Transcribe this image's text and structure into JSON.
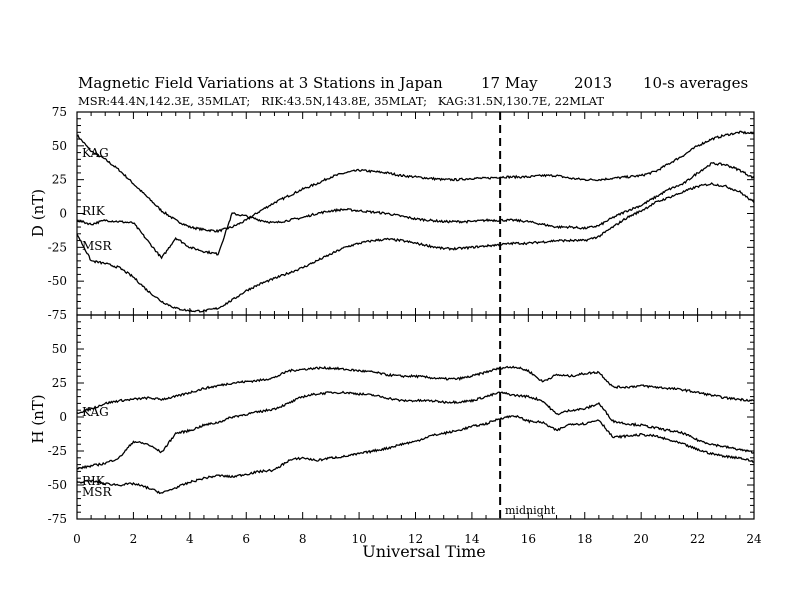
{
  "title": "Magnetic Field Variations at 3 Stations in Japan",
  "date": "17 May",
  "year": "2013",
  "averaging": "10-s averages",
  "subtitle": "MSR:44.4N,142.3E, 35MLAT;   RIK:43.5N,143.8E, 35MLAT;   KAG:31.5N,130.7E, 22MLAT",
  "xlabel": "Universal Time",
  "midnight_label": "midnight",
  "chart_data": [
    {
      "type": "line",
      "panel": "D",
      "ylabel": "D (nT)",
      "ylim": [
        -75,
        75
      ],
      "yticks": [
        75,
        50,
        25,
        0,
        -25,
        -50,
        -75
      ],
      "xlim": [
        0,
        24
      ],
      "xticks": [
        0,
        2,
        4,
        6,
        8,
        10,
        12,
        14,
        16,
        18,
        20,
        22,
        24
      ],
      "marker_x": 15,
      "series": [
        {
          "name": "KAG",
          "x": [
            0,
            0.5,
            1,
            1.5,
            2,
            2.5,
            3,
            3.5,
            4,
            4.5,
            5,
            5.5,
            6,
            6.5,
            7,
            7.5,
            8,
            8.5,
            9,
            9.5,
            10,
            10.5,
            11,
            11.5,
            12,
            12.5,
            13,
            13.5,
            14,
            14.5,
            15,
            15.5,
            16,
            16.5,
            17,
            17.5,
            18,
            18.5,
            19,
            19.5,
            20,
            20.5,
            21,
            21.5,
            22,
            22.5,
            23,
            23.5,
            24
          ],
          "y": [
            58,
            46,
            40,
            32,
            22,
            12,
            2,
            -5,
            -10,
            -12,
            -13,
            -10,
            -5,
            2,
            8,
            13,
            18,
            22,
            27,
            30,
            32,
            31,
            30,
            28,
            27,
            26,
            25,
            25,
            26,
            26,
            27,
            27,
            27,
            28,
            28,
            26,
            25,
            25,
            26,
            27,
            28,
            31,
            37,
            43,
            50,
            55,
            58,
            60,
            59
          ]
        },
        {
          "name": "RIK",
          "x": [
            0,
            0.5,
            1,
            1.5,
            2,
            2.5,
            3,
            3.5,
            4,
            4.5,
            5,
            5.5,
            6,
            6.5,
            7,
            7.5,
            8,
            8.5,
            9,
            9.5,
            10,
            10.5,
            11,
            11.5,
            12,
            12.5,
            13,
            13.5,
            14,
            14.5,
            15,
            15.5,
            16,
            16.5,
            17,
            17.5,
            18,
            18.5,
            19,
            19.5,
            20,
            20.5,
            21,
            21.5,
            22,
            22.5,
            23,
            23.5,
            24
          ],
          "y": [
            -5,
            -8,
            -5,
            -6,
            -7,
            -20,
            -33,
            -18,
            -25,
            -28,
            -30,
            0,
            -2,
            -5,
            -7,
            -5,
            -3,
            0,
            2,
            3,
            2,
            1,
            0,
            -2,
            -4,
            -5,
            -6,
            -6,
            -6,
            -5,
            -5,
            -5,
            -6,
            -8,
            -10,
            -10,
            -11,
            -9,
            -3,
            2,
            6,
            12,
            18,
            22,
            30,
            37,
            36,
            32,
            26
          ]
        },
        {
          "name": "MSR",
          "x": [
            0,
            0.5,
            1,
            1.5,
            2,
            2.5,
            3,
            3.5,
            4,
            4.5,
            5,
            5.5,
            6,
            6.5,
            7,
            7.5,
            8,
            8.5,
            9,
            9.5,
            10,
            10.5,
            11,
            11.5,
            12,
            12.5,
            13,
            13.5,
            14,
            14.5,
            15,
            15.5,
            16,
            16.5,
            17,
            17.5,
            18,
            18.5,
            19,
            19.5,
            20,
            20.5,
            21,
            21.5,
            22,
            22.5,
            23,
            23.5,
            24
          ],
          "y": [
            -15,
            -35,
            -37,
            -40,
            -47,
            -57,
            -65,
            -70,
            -72,
            -72,
            -70,
            -64,
            -57,
            -52,
            -48,
            -44,
            -40,
            -35,
            -30,
            -25,
            -22,
            -20,
            -19,
            -20,
            -22,
            -24,
            -26,
            -26,
            -25,
            -24,
            -23,
            -22,
            -22,
            -21,
            -20,
            -20,
            -20,
            -17,
            -10,
            -3,
            2,
            8,
            12,
            16,
            20,
            22,
            20,
            16,
            8
          ]
        }
      ]
    },
    {
      "type": "line",
      "panel": "H",
      "ylabel": "H (nT)",
      "ylim": [
        -75,
        75
      ],
      "yticks": [
        50,
        25,
        0,
        -25,
        -50,
        -75
      ],
      "xlim": [
        0,
        24
      ],
      "xticks": [
        0,
        2,
        4,
        6,
        8,
        10,
        12,
        14,
        16,
        18,
        20,
        22,
        24
      ],
      "xticklabels": [
        "0",
        "2",
        "4",
        "6",
        "8",
        "10",
        "12",
        "14",
        "16",
        "18",
        "20",
        "22",
        "24"
      ],
      "marker_x": 15,
      "series": [
        {
          "name": "KAG",
          "x": [
            0,
            0.5,
            1,
            1.5,
            2,
            2.5,
            3,
            3.5,
            4,
            4.5,
            5,
            5.5,
            6,
            6.5,
            7,
            7.5,
            8,
            8.5,
            9,
            9.5,
            10,
            10.5,
            11,
            11.5,
            12,
            12.5,
            13,
            13.5,
            14,
            14.5,
            15,
            15.5,
            16,
            16.5,
            17,
            17.5,
            18,
            18.5,
            19,
            19.5,
            20,
            20.5,
            21,
            21.5,
            22,
            22.5,
            23,
            23.5,
            24
          ],
          "y": [
            3,
            6,
            10,
            12,
            13,
            14,
            13,
            15,
            18,
            21,
            23,
            25,
            26,
            27,
            29,
            34,
            35,
            36,
            36,
            35,
            34,
            33,
            31,
            30,
            30,
            29,
            28,
            28,
            30,
            33,
            36,
            37,
            34,
            26,
            31,
            30,
            32,
            33,
            22,
            22,
            23,
            22,
            21,
            20,
            18,
            16,
            14,
            13,
            12
          ]
        },
        {
          "name": "RIK",
          "x": [
            0,
            0.5,
            1,
            1.5,
            2,
            2.5,
            3,
            3.5,
            4,
            4.5,
            5,
            5.5,
            6,
            6.5,
            7,
            7.5,
            8,
            8.5,
            9,
            9.5,
            10,
            10.5,
            11,
            11.5,
            12,
            12.5,
            13,
            13.5,
            14,
            14.5,
            15,
            15.5,
            16,
            16.5,
            17,
            17.5,
            18,
            18.5,
            19,
            19.5,
            20,
            20.5,
            21,
            21.5,
            22,
            22.5,
            23,
            23.5,
            24
          ],
          "y": [
            -38,
            -36,
            -34,
            -30,
            -18,
            -20,
            -26,
            -12,
            -10,
            -6,
            -4,
            0,
            2,
            4,
            6,
            10,
            15,
            17,
            18,
            18,
            17,
            16,
            14,
            12,
            12,
            12,
            11,
            11,
            12,
            15,
            18,
            16,
            15,
            12,
            2,
            5,
            6,
            10,
            -3,
            -5,
            -6,
            -8,
            -10,
            -12,
            -17,
            -20,
            -22,
            -24,
            -26
          ]
        },
        {
          "name": "MSR",
          "x": [
            0,
            0.5,
            1,
            1.5,
            2,
            2.5,
            3,
            3.5,
            4,
            4.5,
            5,
            5.5,
            6,
            6.5,
            7,
            7.5,
            8,
            8.5,
            9,
            9.5,
            10,
            10.5,
            11,
            11.5,
            12,
            12.5,
            13,
            13.5,
            14,
            14.5,
            15,
            15.5,
            16,
            16.5,
            17,
            17.5,
            18,
            18.5,
            19,
            19.5,
            20,
            20.5,
            21,
            21.5,
            22,
            22.5,
            23,
            23.5,
            24
          ],
          "y": [
            -48,
            -47,
            -49,
            -50,
            -49,
            -52,
            -56,
            -52,
            -48,
            -45,
            -43,
            -44,
            -42,
            -40,
            -39,
            -32,
            -30,
            -32,
            -30,
            -29,
            -27,
            -25,
            -23,
            -20,
            -18,
            -14,
            -12,
            -10,
            -7,
            -5,
            -1,
            1,
            -3,
            -4,
            -10,
            -5,
            -5,
            -2,
            -15,
            -14,
            -13,
            -14,
            -17,
            -20,
            -24,
            -27,
            -29,
            -30,
            -33
          ]
        }
      ]
    }
  ]
}
